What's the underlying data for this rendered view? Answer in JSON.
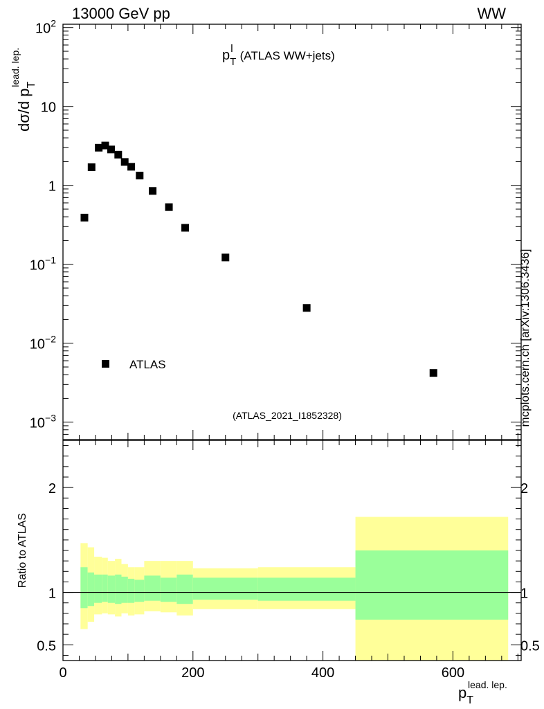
{
  "header": {
    "left": "13000 GeV pp",
    "right": "WW"
  },
  "side_note": "mcplots.cern.ch [arXiv:1306.3436]",
  "chart_data": [
    {
      "type": "scatter",
      "title": {
        "main": "p",
        "sub": "T",
        "sup": "l",
        "rest": "(ATLAS WW+jets)"
      },
      "ylabel": {
        "main": "dσ/d p",
        "sub": "T",
        "sup": "lead. lep."
      },
      "yscale": "log",
      "ylim": [
        0.0006,
        110
      ],
      "xlim": [
        0,
        705
      ],
      "ytick_labels": [
        {
          "value": 100,
          "base": "10",
          "exp": "2"
        },
        {
          "value": 10,
          "base": "10",
          "exp": ""
        },
        {
          "value": 1,
          "base": "1",
          "exp": ""
        },
        {
          "value": 0.1,
          "base": "10",
          "exp": "−1"
        },
        {
          "value": 0.01,
          "base": "10",
          "exp": "−2"
        },
        {
          "value": 0.001,
          "base": "10",
          "exp": "−3"
        }
      ],
      "legend": {
        "entries": [
          "ATLAS"
        ],
        "position": "bottom-left"
      },
      "annotation": "(ATLAS_2021_I1852328)",
      "series": [
        {
          "name": "ATLAS",
          "x": [
            33,
            44,
            55,
            65,
            74,
            85,
            95,
            105,
            118,
            138,
            163,
            188,
            250,
            375,
            570
          ],
          "y": [
            0.39,
            1.7,
            3.0,
            3.2,
            2.85,
            2.45,
            1.98,
            1.72,
            1.33,
            0.85,
            0.53,
            0.29,
            0.122,
            0.028,
            0.0042
          ]
        }
      ]
    },
    {
      "type": "area",
      "ylabel": "Ratio to ATLAS",
      "xlabel": {
        "main": "p",
        "sub": "T",
        "sup": "lead. lep."
      },
      "ylim": [
        0.35,
        2.45
      ],
      "xlim": [
        0,
        705
      ],
      "ytick_labels": [
        2,
        1,
        0.5
      ],
      "xtick_labels": [
        0,
        200,
        400,
        600
      ],
      "reference_line": 1,
      "bins": [
        {
          "x0": 27,
          "x1": 38,
          "inner": [
            0.85,
            1.24
          ],
          "outer": [
            0.65,
            1.47
          ]
        },
        {
          "x0": 38,
          "x1": 48,
          "inner": [
            0.87,
            1.19
          ],
          "outer": [
            0.72,
            1.43
          ]
        },
        {
          "x0": 48,
          "x1": 60,
          "inner": [
            0.9,
            1.17
          ],
          "outer": [
            0.79,
            1.34
          ]
        },
        {
          "x0": 60,
          "x1": 69,
          "inner": [
            0.91,
            1.17
          ],
          "outer": [
            0.8,
            1.33
          ]
        },
        {
          "x0": 69,
          "x1": 80,
          "inner": [
            0.9,
            1.16
          ],
          "outer": [
            0.79,
            1.3
          ]
        },
        {
          "x0": 80,
          "x1": 90,
          "inner": [
            0.89,
            1.17
          ],
          "outer": [
            0.77,
            1.32
          ]
        },
        {
          "x0": 90,
          "x1": 100,
          "inner": [
            0.9,
            1.15
          ],
          "outer": [
            0.8,
            1.27
          ]
        },
        {
          "x0": 100,
          "x1": 110,
          "inner": [
            0.9,
            1.13
          ],
          "outer": [
            0.78,
            1.24
          ]
        },
        {
          "x0": 110,
          "x1": 125,
          "inner": [
            0.91,
            1.12
          ],
          "outer": [
            0.79,
            1.24
          ]
        },
        {
          "x0": 125,
          "x1": 150,
          "inner": [
            0.92,
            1.16
          ],
          "outer": [
            0.82,
            1.3
          ]
        },
        {
          "x0": 150,
          "x1": 175,
          "inner": [
            0.91,
            1.14
          ],
          "outer": [
            0.81,
            1.3
          ]
        },
        {
          "x0": 175,
          "x1": 200,
          "inner": [
            0.89,
            1.17
          ],
          "outer": [
            0.78,
            1.3
          ]
        },
        {
          "x0": 200,
          "x1": 300,
          "inner": [
            0.93,
            1.14
          ],
          "outer": [
            0.84,
            1.23
          ]
        },
        {
          "x0": 300,
          "x1": 450,
          "inner": [
            0.92,
            1.14
          ],
          "outer": [
            0.84,
            1.24
          ]
        },
        {
          "x0": 450,
          "x1": 685,
          "inner": [
            0.74,
            1.4
          ],
          "outer": [
            0.35,
            1.72
          ]
        }
      ]
    }
  ],
  "colors": {
    "inner_band": "#9aff9a",
    "outer_band": "#ffff99",
    "marker": "#000000",
    "annotation": "#888888",
    "side_note": "#777777"
  }
}
